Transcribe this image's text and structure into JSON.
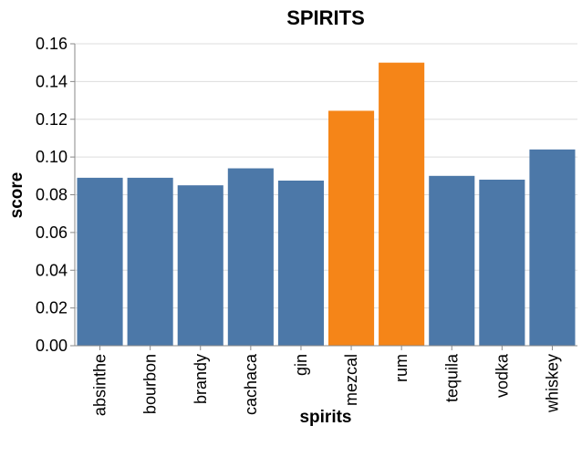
{
  "chart_data": {
    "type": "bar",
    "title": "SPIRITS",
    "xlabel": "spirits",
    "ylabel": "score",
    "categories": [
      "absinthe",
      "bourbon",
      "brandy",
      "cachaca",
      "gin",
      "mezcal",
      "rum",
      "tequila",
      "vodka",
      "whiskey"
    ],
    "values": [
      0.089,
      0.089,
      0.085,
      0.094,
      0.0875,
      0.1245,
      0.15,
      0.09,
      0.088,
      0.104
    ],
    "highlighted": [
      "mezcal",
      "rum"
    ],
    "ylim": [
      0,
      0.16
    ],
    "yticks": [
      "0.00",
      "0.02",
      "0.04",
      "0.06",
      "0.08",
      "0.10",
      "0.12",
      "0.14",
      "0.16"
    ],
    "grid": true,
    "colors": {
      "default": "#4c78a8",
      "highlight": "#f58518"
    }
  }
}
